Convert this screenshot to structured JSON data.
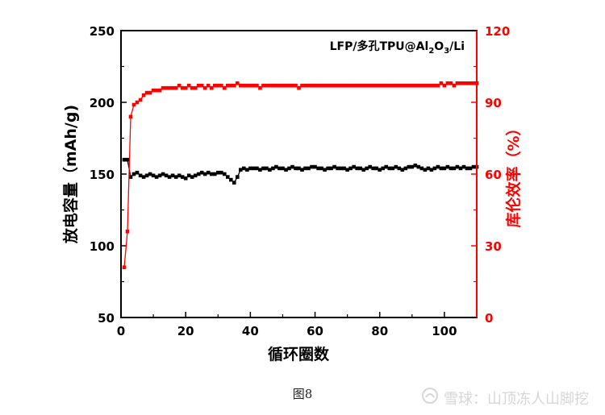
{
  "chart_data": {
    "type": "scatter",
    "annotation": "LFP/多孔TPU@Al",
    "annotation_sub1": "2",
    "annotation_mid": "O",
    "annotation_sub2": "3",
    "annotation_end": "/Li",
    "xlabel": "循环圈数",
    "ylabel_left": "放电容量（mAh/g)",
    "ylabel_right": "库伦效率（%）",
    "xlim": [
      0,
      110
    ],
    "ylim_left": [
      50,
      250
    ],
    "ylim_right": [
      0,
      120
    ],
    "x_ticks": [
      "0",
      "20",
      "40",
      "60",
      "80",
      "100"
    ],
    "y_left_ticks": [
      "50",
      "100",
      "150",
      "200",
      "250"
    ],
    "y_right_ticks": [
      "0",
      "30",
      "60",
      "90",
      "120"
    ],
    "grid": false,
    "series": [
      {
        "axis": "left",
        "color": "#000000",
        "x": [
          1,
          2,
          3,
          4,
          5,
          6,
          7,
          8,
          9,
          10,
          11,
          12,
          13,
          14,
          15,
          16,
          17,
          18,
          19,
          20,
          21,
          22,
          23,
          24,
          25,
          26,
          27,
          28,
          29,
          30,
          31,
          32,
          33,
          34,
          35,
          36,
          37,
          38,
          39,
          40,
          41,
          42,
          43,
          44,
          45,
          46,
          47,
          48,
          49,
          50,
          51,
          52,
          53,
          54,
          55,
          56,
          57,
          58,
          59,
          60,
          61,
          62,
          63,
          64,
          65,
          66,
          67,
          68,
          69,
          70,
          71,
          72,
          73,
          74,
          75,
          76,
          77,
          78,
          79,
          80,
          81,
          82,
          83,
          84,
          85,
          86,
          87,
          88,
          89,
          90,
          91,
          92,
          93,
          94,
          95,
          96,
          97,
          98,
          99,
          100,
          101,
          102,
          103,
          104,
          105,
          106,
          107,
          108,
          109,
          110
        ],
        "y": [
          160,
          160,
          148,
          150,
          151,
          149,
          148,
          149,
          150,
          149,
          148,
          149,
          150,
          149,
          148,
          149,
          148,
          149,
          148,
          147,
          149,
          148,
          149,
          150,
          151,
          150,
          151,
          150,
          150,
          151,
          151,
          150,
          148,
          146,
          144,
          148,
          153,
          154,
          153,
          154,
          154,
          154,
          153,
          154,
          154,
          153,
          154,
          155,
          154,
          154,
          153,
          154,
          155,
          154,
          154,
          153,
          154,
          154,
          155,
          155,
          154,
          154,
          153,
          154,
          154,
          155,
          154,
          154,
          154,
          153,
          154,
          155,
          154,
          154,
          153,
          154,
          155,
          154,
          154,
          153,
          154,
          155,
          154,
          154,
          155,
          154,
          153,
          154,
          155,
          155,
          156,
          155,
          154,
          153,
          154,
          153,
          154,
          155,
          154,
          154,
          155,
          154,
          154,
          155,
          154,
          155,
          154,
          154,
          155,
          155
        ]
      },
      {
        "axis": "right",
        "color": "#ff0000",
        "x": [
          1,
          2,
          3,
          4,
          5,
          6,
          7,
          8,
          9,
          10,
          11,
          12,
          13,
          14,
          15,
          16,
          17,
          18,
          19,
          20,
          21,
          22,
          23,
          24,
          25,
          26,
          27,
          28,
          29,
          30,
          31,
          32,
          33,
          34,
          35,
          36,
          37,
          38,
          39,
          40,
          41,
          42,
          43,
          44,
          45,
          46,
          47,
          48,
          49,
          50,
          51,
          52,
          53,
          54,
          55,
          56,
          57,
          58,
          59,
          60,
          61,
          62,
          63,
          64,
          65,
          66,
          67,
          68,
          69,
          70,
          71,
          72,
          73,
          74,
          75,
          76,
          77,
          78,
          79,
          80,
          81,
          82,
          83,
          84,
          85,
          86,
          87,
          88,
          89,
          90,
          91,
          92,
          93,
          94,
          95,
          96,
          97,
          98,
          99,
          100,
          101,
          102,
          103,
          104,
          105,
          106,
          107,
          108,
          109,
          110
        ],
        "y": [
          21,
          36,
          84,
          89,
          90,
          91,
          93,
          94,
          94,
          95,
          95,
          95,
          96,
          96,
          96,
          96,
          96,
          97,
          96,
          96,
          97,
          96,
          96,
          97,
          97,
          96,
          97,
          96,
          97,
          97,
          97,
          96,
          97,
          97,
          97,
          98,
          97,
          97,
          97,
          97,
          97,
          97,
          96,
          97,
          97,
          97,
          97,
          97,
          97,
          97,
          97,
          97,
          97,
          97,
          96,
          97,
          97,
          97,
          97,
          97,
          97,
          97,
          97,
          97,
          97,
          97,
          97,
          97,
          97,
          97,
          97,
          97,
          97,
          97,
          97,
          97,
          97,
          97,
          97,
          97,
          97,
          97,
          97,
          97,
          97,
          97,
          97,
          97,
          97,
          97,
          97,
          97,
          97,
          97,
          97,
          97,
          97,
          97,
          98,
          97,
          98,
          98,
          97,
          98,
          98,
          98,
          98,
          98,
          98,
          98
        ]
      }
    ]
  },
  "caption": "图8",
  "watermark": {
    "text": "雪球：山顶冻人山脚挖",
    "icon": "xueqiu-logo-icon"
  }
}
